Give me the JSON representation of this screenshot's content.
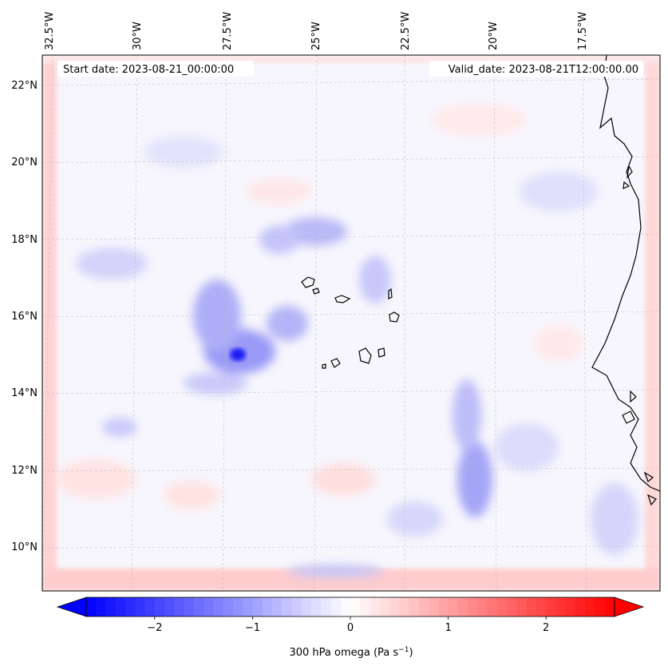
{
  "map": {
    "start_label": "Start date: 2023-08-21_00:00:00",
    "valid_label": "Valid_date: 2023-08-21T12:00:00.00",
    "lon_ticks": [
      "32.5°W",
      "30°W",
      "27.5°W",
      "25°W",
      "22.5°W",
      "20°W",
      "17.5°W"
    ],
    "lat_ticks": [
      "22°N",
      "20°N",
      "18°N",
      "16°N",
      "14°N",
      "12°N",
      "10°N"
    ],
    "field_colors": {
      "negative": "#0000ff",
      "neutral": "#ffffff",
      "positive": "#ff0000"
    },
    "features": [
      "coastline",
      "cabo-verde-islands",
      "lat-lon-gridlines"
    ]
  },
  "colorbar": {
    "label_main": "300 hPa omega (Pa s",
    "label_exp": "−1",
    "label_close": ")",
    "range": [
      -2.7,
      2.7
    ],
    "extend": "both",
    "tick_values": [
      -2,
      -1,
      0,
      1,
      2
    ],
    "tick_labels": [
      "−2",
      "−1",
      "0",
      "1",
      "2"
    ]
  }
}
